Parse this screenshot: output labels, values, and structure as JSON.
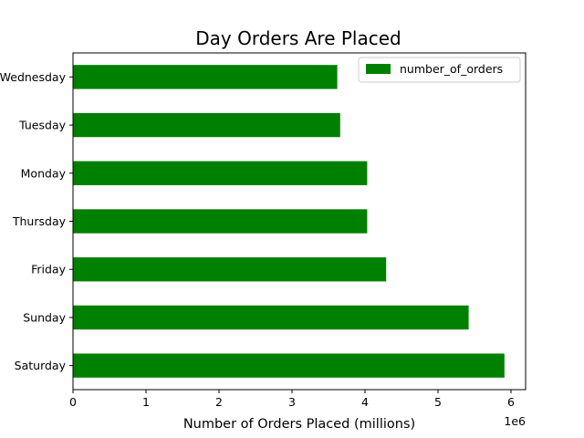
{
  "chart_data": {
    "type": "bar",
    "orientation": "horizontal",
    "title": "Day Orders Are Placed",
    "xlabel": "Number of Orders Placed (millions)",
    "ylabel": "",
    "x_offset_label": "1e6",
    "xlim": [
      0,
      6.2
    ],
    "xticks": [
      0,
      1,
      2,
      3,
      4,
      5,
      6
    ],
    "categories": [
      "Saturday",
      "Sunday",
      "Friday",
      "Thursday",
      "Monday",
      "Tuesday",
      "Wednesday"
    ],
    "series": [
      {
        "name": "number_of_orders",
        "color": "#008000",
        "values": [
          5.91,
          5.42,
          4.29,
          4.03,
          4.03,
          3.66,
          3.62
        ]
      }
    ],
    "legend_position": "top-right",
    "grid": false
  }
}
